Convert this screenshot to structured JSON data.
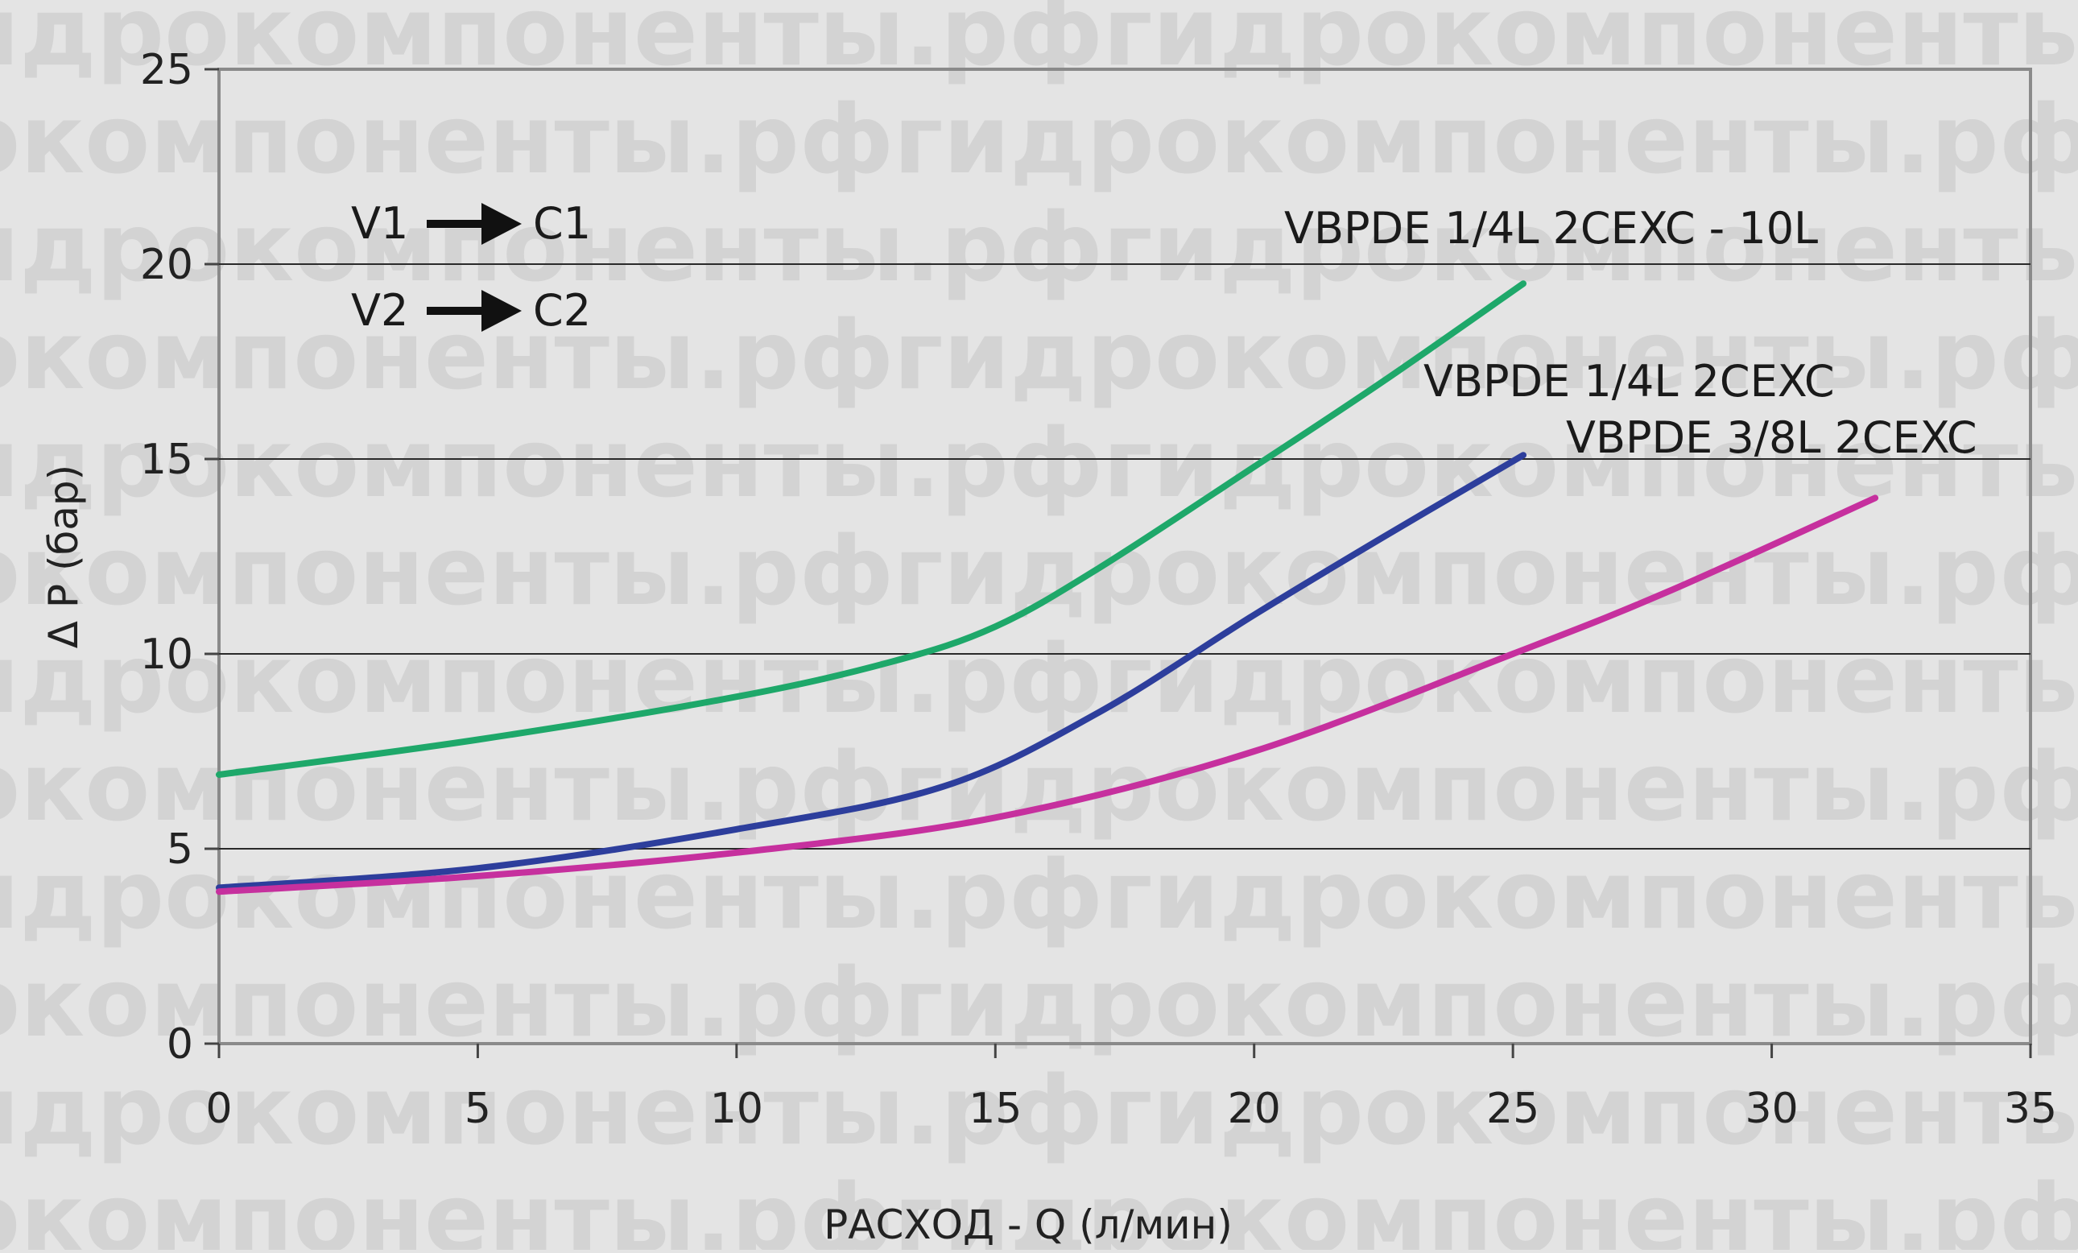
{
  "watermark_text": "гидрокомпоненты.рф",
  "chart_data": {
    "type": "line",
    "xlabel": "РАСХОД - Q (л/мин)",
    "ylabel": "Δ P (бар)",
    "xlim": [
      0,
      35
    ],
    "ylim": [
      0,
      25
    ],
    "xticks": [
      0,
      5,
      10,
      15,
      20,
      25,
      30,
      35
    ],
    "yticks": [
      0,
      5,
      10,
      15,
      20,
      25
    ],
    "grid": "horizontal",
    "annotations": [
      {
        "from": "V1",
        "to": "C1"
      },
      {
        "from": "V2",
        "to": "C2"
      }
    ],
    "series": [
      {
        "name": "VBPDE 1/4L 2CEXC - 10L",
        "color": "#1ea86a",
        "x": [
          0,
          5,
          10,
          13,
          15,
          17,
          20,
          22.5,
          25.2
        ],
        "y": [
          6.9,
          7.8,
          8.9,
          9.8,
          10.7,
          12.2,
          14.8,
          17.0,
          19.5
        ]
      },
      {
        "name": "VBPDE 1/4L 2CEXC",
        "color": "#2d3e9c",
        "x": [
          0,
          5,
          10,
          14,
          17,
          20,
          22.5,
          25.2
        ],
        "y": [
          4.0,
          4.5,
          5.5,
          6.6,
          8.5,
          11.0,
          13.0,
          15.1
        ]
      },
      {
        "name": "VBPDE 3/8L 2CEXC",
        "color": "#c6309e",
        "x": [
          0,
          5,
          10,
          15,
          20,
          25,
          28,
          32
        ],
        "y": [
          3.9,
          4.3,
          4.9,
          5.8,
          7.5,
          10.0,
          11.6,
          14.0
        ]
      }
    ]
  }
}
